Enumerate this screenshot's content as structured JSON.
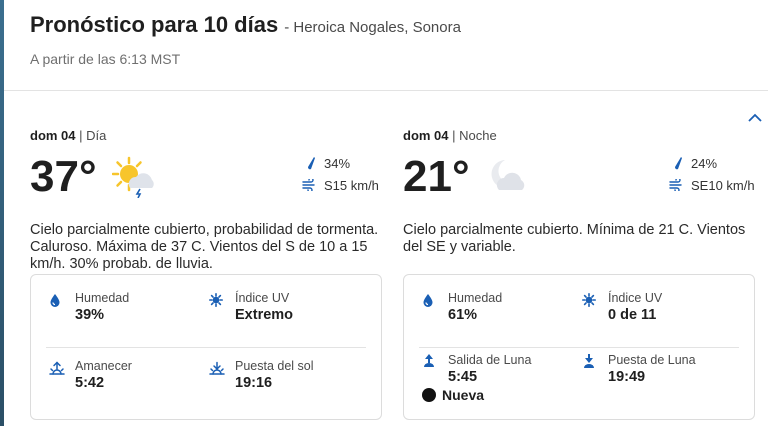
{
  "header": {
    "title": "Pronóstico para 10 días",
    "location": "- Heroica Nogales, Sonora",
    "as_of": "A partir de las 6:13 MST"
  },
  "day": {
    "date": "dom 04",
    "part_sep": " | ",
    "part": "Día",
    "temp": "37°",
    "condition_icon": "partly-sunny-storm-icon",
    "precip": "34%",
    "wind": "S15 km/h",
    "description": "Cielo parcialmente cubierto, probabilidad de tormenta. Caluroso. Máxima de 37 C. Vientos del S de 10 a 15 km/h. 30% probab. de lluvia.",
    "humidity_label": "Humedad",
    "humidity": "39%",
    "uv_label": "Índice UV",
    "uv": "Extremo",
    "sunrise_label": "Amanecer",
    "sunrise": "5:42",
    "sunset_label": "Puesta del sol",
    "sunset": "19:16"
  },
  "night": {
    "date": "dom 04",
    "part_sep": " | ",
    "part": "Noche",
    "temp": "21°",
    "condition_icon": "partly-cloudy-night-icon",
    "precip": "24%",
    "wind": "SE10 km/h",
    "description": "Cielo parcialmente cubierto. Mínima de 21 C. Vientos del SE y variable.",
    "humidity_label": "Humedad",
    "humidity": "61%",
    "uv_label": "Índice UV",
    "uv": "0 de 11",
    "moonrise_label": "Salida de Luna",
    "moonrise": "5:45",
    "moonset_label": "Puesta de Luna",
    "moonset": "19:49",
    "moon_phase": "Nueva"
  },
  "colors": {
    "accent": "#1a5fb4",
    "text": "#1f1f1f",
    "sun": "#f7c52b"
  }
}
